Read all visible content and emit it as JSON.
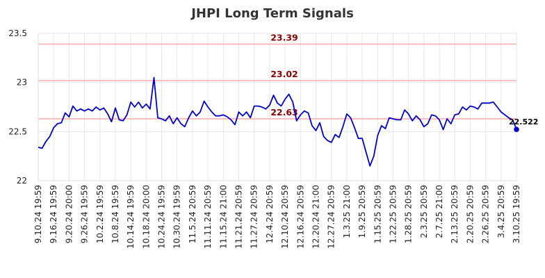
{
  "chart_data": {
    "type": "line",
    "title": "JHPI Long Term Signals",
    "xlabel": "",
    "ylabel": "",
    "ylim": [
      22,
      23.5
    ],
    "y_ticks": [
      "22",
      "22.5",
      "23",
      "23.5"
    ],
    "x_tick_labels": [
      "9.10.24 19:59",
      "9.16.24 19:59",
      "9.20.24 20:00",
      "9.26.24 19:59",
      "10.2.24 19:59",
      "10.8.24 19:59",
      "10.14.24 19:59",
      "10.18.24 20:00",
      "10.24.24 19:59",
      "10.30.24 19:59",
      "11.5.24 20:59",
      "11.11.24 20:59",
      "11.15.24 21:00",
      "11.21.24 20:59",
      "11.27.24 20:59",
      "12.4.24 20:59",
      "12.10.24 20:59",
      "12.16.24 20:59",
      "12.20.24 21:00",
      "12.27.24 20:59",
      "1.3.25 21:00",
      "1.9.25 20:59",
      "1.15.25 20:59",
      "1.22.25 20:59",
      "1.28.25 20:59",
      "2.3.25 20:59",
      "2.7.25 21:00",
      "2.13.25 20:59",
      "2.20.25 20:59",
      "2.26.25 20:59",
      "3.4.25 20:59",
      "3.10.25 19:59"
    ],
    "grid": true,
    "line_color": "#0000cc",
    "level_color": "#ffaaaa",
    "levels": [
      {
        "value": 23.39,
        "label": "23.39"
      },
      {
        "value": 23.02,
        "label": "23.02"
      },
      {
        "value": 22.63,
        "label": "22.63"
      }
    ],
    "last_value_label": "22.522",
    "series": [
      {
        "values": [
          22.34,
          22.33,
          22.4,
          22.45,
          22.54,
          22.58,
          22.59,
          22.69,
          22.65,
          22.76,
          22.71,
          22.73,
          22.71,
          22.73,
          22.71,
          22.75,
          22.72,
          22.74,
          22.68,
          22.6,
          22.74,
          22.62,
          22.61,
          22.67,
          22.8,
          22.75,
          22.8,
          22.74,
          22.78,
          22.73,
          23.05,
          22.64,
          22.63,
          22.61,
          22.66,
          22.58,
          22.64,
          22.58,
          22.55,
          22.64,
          22.71,
          22.66,
          22.7,
          22.81,
          22.75,
          22.7,
          22.66,
          22.66,
          22.67,
          22.65,
          22.62,
          22.57,
          22.7,
          22.66,
          22.7,
          22.64,
          22.76,
          22.76,
          22.75,
          22.73,
          22.77,
          22.87,
          22.79,
          22.76,
          22.83,
          22.88,
          22.8,
          22.61,
          22.67,
          22.71,
          22.69,
          22.56,
          22.51,
          22.59,
          22.45,
          22.41,
          22.39,
          22.47,
          22.44,
          22.55,
          22.68,
          22.64,
          22.54,
          22.43,
          22.43,
          22.29,
          22.15,
          22.25,
          22.46,
          22.56,
          22.53,
          22.64,
          22.63,
          22.62,
          22.62,
          22.72,
          22.68,
          22.61,
          22.66,
          22.62,
          22.55,
          22.58,
          22.67,
          22.66,
          22.62,
          22.52,
          22.63,
          22.58,
          22.67,
          22.68,
          22.75,
          22.72,
          22.76,
          22.75,
          22.73,
          22.79,
          22.79,
          22.79,
          22.8,
          22.75,
          22.7,
          22.67,
          22.64,
          22.62,
          22.522
        ]
      }
    ]
  }
}
